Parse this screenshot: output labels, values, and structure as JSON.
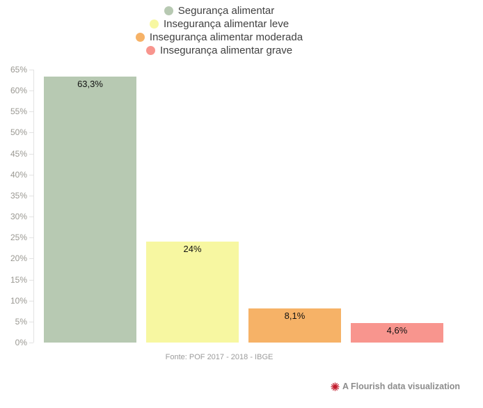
{
  "chart_data": {
    "type": "bar",
    "categories": [
      "Segurança alimentar",
      "Insegurança alimentar leve",
      "Insegurança alimentar moderada",
      "Insegurança alimentar grave"
    ],
    "values": [
      63.3,
      24,
      8.1,
      4.6
    ],
    "value_labels": [
      "63,3%",
      "24%",
      "8,1%",
      "4,6%"
    ],
    "bar_colors": [
      "#b7c9b2",
      "#f7f7a1",
      "#f6b267",
      "#f8958e"
    ],
    "title": "",
    "xlabel": "",
    "ylabel": "",
    "ylim": [
      0,
      65
    ],
    "ytick_step": 5,
    "ytick_suffix": "%",
    "grid": false,
    "legend_position": "top-center",
    "source_note": "Fonte: POF 2017 - 2018 - IBGE"
  },
  "legend": {
    "items": [
      {
        "label": "Segurança alimentar",
        "color": "#b7c9b2"
      },
      {
        "label": "Insegurança alimentar leve",
        "color": "#f7f7a1"
      },
      {
        "label": "Insegurança alimentar moderada",
        "color": "#f6b267"
      },
      {
        "label": "Insegurança alimentar grave",
        "color": "#f8958e"
      }
    ]
  },
  "footer": {
    "source": "Fonte: POF 2017 - 2018 - IBGE",
    "credit": "A Flourish data visualization"
  },
  "theme": {
    "background": "#ffffff",
    "axis_line_color": "#e2e2e2",
    "tick_label_color": "#9a9892",
    "value_label_color": "#111111",
    "legend_text_color": "#404040",
    "source_color": "#9b9b9b",
    "credit_text_color": "#8c8c8c",
    "credit_icon_color": "#c21c2c"
  }
}
